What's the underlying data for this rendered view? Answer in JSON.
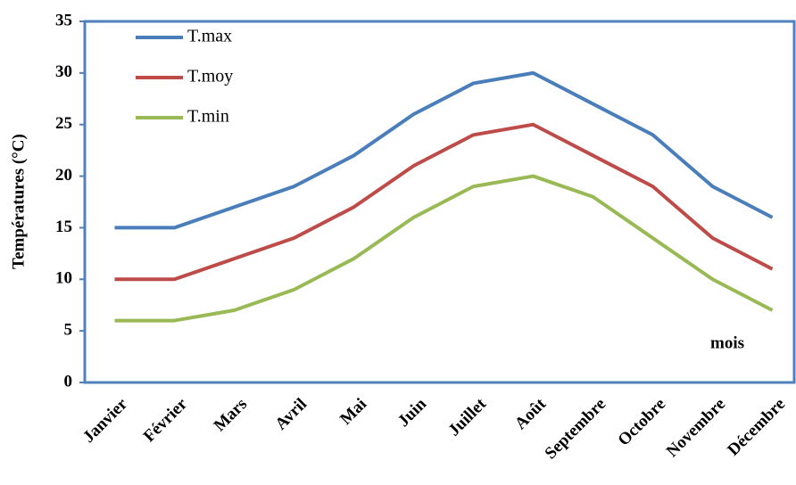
{
  "chart_data": {
    "type": "line",
    "y_label": "Températures (°C)",
    "annotation": "mois",
    "categories": [
      "Janvier",
      "Février",
      "Mars",
      "Avril",
      "Mai",
      "Juin",
      "Juillet",
      "Août",
      "Septembre",
      "Octobre",
      "Novembre",
      "Décembre"
    ],
    "series": [
      {
        "name": "T.max",
        "color": "#4a7ebb",
        "values": [
          15,
          15,
          17,
          19,
          22,
          26,
          29,
          30,
          27,
          24,
          19,
          16
        ]
      },
      {
        "name": "T.moy",
        "color": "#be4b48",
        "values": [
          10,
          10,
          12,
          14,
          17,
          21,
          24,
          25,
          22,
          19,
          14,
          11
        ]
      },
      {
        "name": "T.min",
        "color": "#98b954",
        "values": [
          6,
          6,
          7,
          9,
          12,
          16,
          19,
          20,
          18,
          14,
          10,
          7
        ]
      }
    ],
    "ylim": [
      0,
      35
    ],
    "yticks": [
      0,
      5,
      10,
      15,
      20,
      25,
      30,
      35
    ],
    "grid": false,
    "legend": "upper left"
  }
}
